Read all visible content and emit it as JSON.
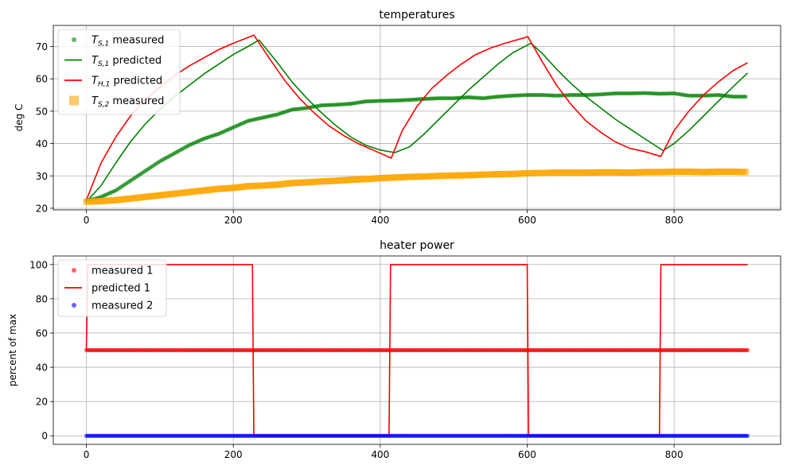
{
  "chart_data": [
    {
      "type": "line",
      "title": "temperatures",
      "xlabel": "",
      "ylabel": "deg C",
      "xlim": [
        -45,
        945
      ],
      "ylim": [
        19.5,
        76.5
      ],
      "xticks": [
        0,
        200,
        400,
        600,
        800
      ],
      "yticks": [
        20,
        30,
        40,
        50,
        60,
        70
      ],
      "grid": true,
      "legend_position": "top-left",
      "legend": [
        {
          "main": "T",
          "sub": "S,1",
          "suffix": " measured",
          "marker": "dot",
          "color": "#008000"
        },
        {
          "main": "T",
          "sub": "S,1",
          "suffix": " predicted",
          "marker": "line",
          "color": "#008000"
        },
        {
          "main": "T",
          "sub": "H,1",
          "suffix": " predicted",
          "marker": "line",
          "color": "#ff0000"
        },
        {
          "main": "T",
          "sub": "S,2",
          "suffix": " measured",
          "marker": "square",
          "color": "#ffa500"
        }
      ],
      "series": [
        {
          "kind": "scatter",
          "marker": "dot",
          "color": "#008000",
          "x": [
            0,
            10,
            20,
            40,
            60,
            80,
            100,
            120,
            140,
            160,
            180,
            200,
            220,
            240,
            260,
            280,
            300,
            320,
            340,
            360,
            380,
            400,
            420,
            440,
            460,
            480,
            500,
            520,
            540,
            560,
            580,
            600,
            620,
            640,
            660,
            680,
            700,
            720,
            740,
            760,
            780,
            800,
            820,
            840,
            860,
            880,
            900
          ],
          "y": [
            22.5,
            22.8,
            23.5,
            25.5,
            28.5,
            31.5,
            34.5,
            37.0,
            39.5,
            41.5,
            43.0,
            45.0,
            47.0,
            48.0,
            49.0,
            50.5,
            51.0,
            51.8,
            52.0,
            52.3,
            53.0,
            53.2,
            53.3,
            53.5,
            53.8,
            54.0,
            54.0,
            54.3,
            54.0,
            54.5,
            54.8,
            55.0,
            55.0,
            54.8,
            55.0,
            55.0,
            55.2,
            55.5,
            55.5,
            55.6,
            55.4,
            55.5,
            54.8,
            54.8,
            55.0,
            54.5,
            54.5
          ]
        },
        {
          "kind": "line",
          "color": "#008000",
          "x": [
            0,
            20,
            40,
            60,
            80,
            100,
            120,
            140,
            160,
            180,
            200,
            220,
            235,
            260,
            280,
            300,
            320,
            340,
            360,
            380,
            400,
            420,
            440,
            460,
            480,
            500,
            520,
            540,
            560,
            580,
            605,
            620,
            640,
            660,
            680,
            700,
            720,
            740,
            760,
            785,
            800,
            820,
            840,
            860,
            880,
            900
          ],
          "y": [
            22.0,
            27.0,
            34.0,
            40.5,
            46.0,
            50.5,
            54.5,
            58.0,
            61.5,
            64.5,
            67.5,
            70.0,
            72.0,
            65.0,
            59.0,
            54.0,
            49.5,
            45.5,
            42.0,
            39.5,
            38.0,
            37.2,
            39.0,
            43.0,
            47.5,
            52.0,
            56.5,
            60.5,
            64.5,
            68.0,
            71.0,
            68.0,
            63.0,
            58.5,
            54.5,
            51.0,
            47.5,
            44.5,
            41.5,
            37.8,
            40.0,
            44.0,
            48.5,
            53.0,
            57.5,
            61.8
          ]
        },
        {
          "kind": "line",
          "color": "#ff0000",
          "x": [
            0,
            20,
            40,
            60,
            80,
            100,
            120,
            140,
            160,
            180,
            200,
            228,
            250,
            270,
            290,
            310,
            330,
            350,
            370,
            390,
            415,
            430,
            450,
            470,
            490,
            510,
            530,
            550,
            570,
            601,
            620,
            640,
            660,
            680,
            700,
            720,
            740,
            760,
            782,
            800,
            820,
            840,
            860,
            880,
            900
          ],
          "y": [
            22.5,
            34.0,
            42.0,
            48.5,
            53.5,
            57.5,
            61.0,
            64.0,
            66.5,
            69.0,
            71.0,
            73.5,
            66.0,
            59.5,
            54.0,
            49.5,
            45.5,
            42.5,
            40.0,
            38.0,
            35.5,
            44.0,
            51.5,
            57.0,
            61.0,
            64.5,
            67.5,
            69.5,
            71.0,
            73.0,
            65.5,
            58.0,
            52.0,
            47.0,
            43.5,
            40.5,
            38.5,
            37.5,
            36.0,
            44.0,
            50.0,
            55.0,
            59.0,
            62.5,
            65.0
          ]
        },
        {
          "kind": "scatter",
          "marker": "square",
          "color": "#ffa500",
          "x": [
            0,
            20,
            40,
            60,
            80,
            100,
            120,
            140,
            160,
            180,
            200,
            220,
            240,
            260,
            280,
            300,
            320,
            340,
            360,
            380,
            400,
            420,
            440,
            460,
            480,
            500,
            520,
            540,
            560,
            580,
            600,
            620,
            640,
            660,
            680,
            700,
            720,
            740,
            760,
            780,
            800,
            820,
            840,
            860,
            880,
            900
          ],
          "y": [
            22.0,
            22.2,
            22.5,
            23.0,
            23.5,
            24.0,
            24.5,
            25.0,
            25.5,
            26.0,
            26.3,
            26.8,
            27.0,
            27.3,
            27.8,
            28.0,
            28.3,
            28.5,
            28.8,
            29.0,
            29.3,
            29.5,
            29.7,
            29.8,
            30.0,
            30.1,
            30.2,
            30.4,
            30.5,
            30.6,
            30.8,
            30.9,
            31.0,
            31.0,
            31.0,
            31.1,
            31.1,
            31.0,
            31.2,
            31.2,
            31.3,
            31.3,
            31.2,
            31.3,
            31.3,
            31.2
          ]
        }
      ]
    },
    {
      "type": "line",
      "title": "heater power",
      "xlabel": "",
      "ylabel": "percent of max",
      "xlim": [
        -45,
        945
      ],
      "ylim": [
        -5,
        105
      ],
      "xticks": [
        0,
        200,
        400,
        600,
        800
      ],
      "yticks": [
        0,
        20,
        40,
        60,
        80,
        100
      ],
      "grid": true,
      "legend_position": "top-left",
      "legend": [
        {
          "main": "measured 1",
          "marker": "dot",
          "color": "#ff0000"
        },
        {
          "main": "predicted 1",
          "marker": "line",
          "color": "#ff0000"
        },
        {
          "main": "measured 2",
          "marker": "dot",
          "color": "#0000ff"
        }
      ],
      "series": [
        {
          "kind": "band",
          "marker": "dot",
          "color": "#ff0000",
          "x": [
            0,
            900
          ],
          "y": [
            50,
            50
          ]
        },
        {
          "kind": "line",
          "color": "#ff0000",
          "x": [
            0,
            2,
            226,
            228,
            412,
            414,
            600,
            602,
            780,
            782,
            900
          ],
          "y": [
            50,
            100,
            100,
            0,
            0,
            100,
            100,
            0,
            0,
            100,
            100
          ]
        },
        {
          "kind": "band",
          "marker": "dot",
          "color": "#0000ff",
          "x": [
            0,
            900
          ],
          "y": [
            0,
            0
          ]
        }
      ]
    }
  ]
}
